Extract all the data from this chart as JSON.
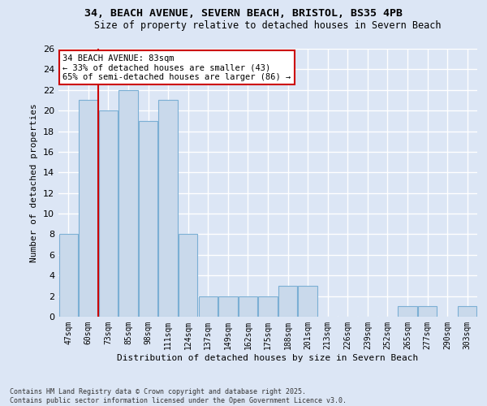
{
  "title1": "34, BEACH AVENUE, SEVERN BEACH, BRISTOL, BS35 4PB",
  "title2": "Size of property relative to detached houses in Severn Beach",
  "xlabel": "Distribution of detached houses by size in Severn Beach",
  "ylabel": "Number of detached properties",
  "categories": [
    "47sqm",
    "60sqm",
    "73sqm",
    "85sqm",
    "98sqm",
    "111sqm",
    "124sqm",
    "137sqm",
    "149sqm",
    "162sqm",
    "175sqm",
    "188sqm",
    "201sqm",
    "213sqm",
    "226sqm",
    "239sqm",
    "252sqm",
    "265sqm",
    "277sqm",
    "290sqm",
    "303sqm"
  ],
  "values": [
    8,
    21,
    20,
    22,
    19,
    21,
    8,
    2,
    2,
    2,
    2,
    3,
    3,
    0,
    0,
    0,
    0,
    1,
    1,
    0,
    1
  ],
  "bar_color": "#c9d9eb",
  "bar_edge_color": "#7bafd4",
  "highlight_line_index": 2,
  "annotation_text": "34 BEACH AVENUE: 83sqm\n← 33% of detached houses are smaller (43)\n65% of semi-detached houses are larger (86) →",
  "annotation_box_color": "#ffffff",
  "annotation_box_edge_color": "#cc0000",
  "ylim": [
    0,
    26
  ],
  "yticks": [
    0,
    2,
    4,
    6,
    8,
    10,
    12,
    14,
    16,
    18,
    20,
    22,
    24,
    26
  ],
  "bg_color": "#dce6f5",
  "plot_bg_color": "#dce6f5",
  "fig_bg_color": "#dce6f5",
  "grid_color": "#ffffff",
  "footer1": "Contains HM Land Registry data © Crown copyright and database right 2025.",
  "footer2": "Contains public sector information licensed under the Open Government Licence v3.0."
}
